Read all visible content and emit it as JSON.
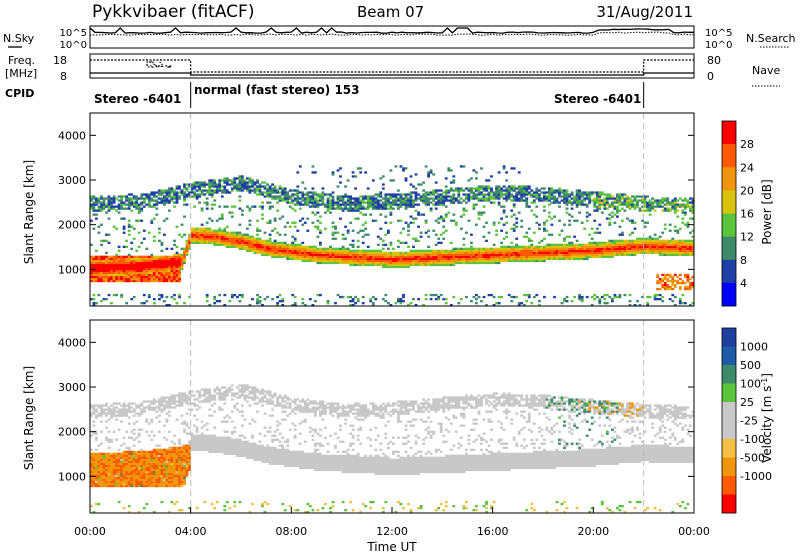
{
  "header": {
    "station": "Pykkvibaer (fitACF)",
    "beam": "Beam 07",
    "date": "31/Aug/2011"
  },
  "strip_labels": {
    "nsky": "N.Sky",
    "nsky_hi": "10^5",
    "nsky_lo": "10^0",
    "nsearch": "N.Search",
    "nsearch_hi": "10^5",
    "nsearch_lo": "10^0",
    "freq": "Freq.",
    "freq_unit": "[MHz]",
    "freq_hi": "18",
    "freq_lo": "8",
    "nave": "Nave",
    "nave_hi": "80",
    "nave_lo": "0",
    "cpid": "CPID"
  },
  "cpid_segments": [
    {
      "label": "Stereo -6401",
      "start_h": 0,
      "end_h": 4
    },
    {
      "label": "normal (fast stereo) 153",
      "start_h": 4,
      "end_h": 22
    },
    {
      "label": "Stereo -6401",
      "start_h": 22,
      "end_h": 24
    }
  ],
  "colors": {
    "power": [
      "#0000ff",
      "#1f3fa6",
      "#3f8a6a",
      "#5cc43c",
      "#d8c20a",
      "#f0960a",
      "#ff5a00",
      "#ff0000"
    ],
    "velocity": [
      "#ff0000",
      "#ff5a00",
      "#f0960a",
      "#f5c042",
      "#c8c8c8",
      "#c8c8c8",
      "#5cc43c",
      "#3f8a6a",
      "#1f5aa6",
      "#1f3f9f"
    ]
  },
  "chart_data": [
    {
      "type": "heatmap",
      "name": "power",
      "ylabel": "Slant Range [km]",
      "xlim": [
        0,
        24
      ],
      "ylim": [
        180,
        4500
      ],
      "y_ticks": [
        1000,
        2000,
        3000,
        4000
      ],
      "colorbar_label": "Power [dB]",
      "colorbar_ticks": [
        "4",
        "8",
        "12",
        "16",
        "20",
        "24",
        "28"
      ],
      "colorbar_range": [
        0,
        30
      ]
    },
    {
      "type": "heatmap",
      "name": "velocity",
      "xlabel": "Time UT",
      "ylabel": "Slant Range [km]",
      "xlim": [
        0,
        24
      ],
      "ylim": [
        180,
        4500
      ],
      "x_ticks": [
        "00:00",
        "04:00",
        "08:00",
        "12:00",
        "16:00",
        "20:00",
        "00:00"
      ],
      "y_ticks": [
        1000,
        2000,
        3000,
        4000
      ],
      "colorbar_label": "Velocity [m s^-1]",
      "colorbar_ticks": [
        "1000",
        "500",
        "100",
        "25",
        "-25",
        "-100",
        "-500",
        "-1000"
      ]
    }
  ]
}
